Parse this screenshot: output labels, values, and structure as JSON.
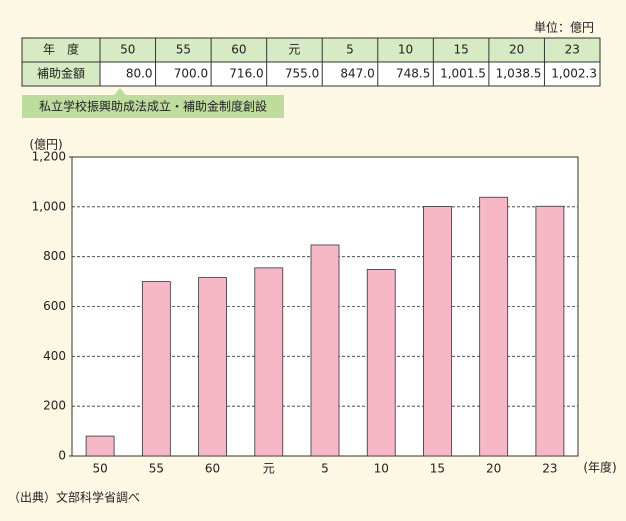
{
  "chart_data": {
    "type": "bar",
    "unit_note": "単位：億円",
    "table_header": "年　度",
    "table_row_label": "補助金額",
    "annotation": "私立学校振興助成法成立・補助金制度創設",
    "ylabel": "(億円)",
    "xlabel": "(年度)",
    "source": "（出典）文部科学省調べ",
    "categories": [
      "50",
      "55",
      "60",
      "元",
      "5",
      "10",
      "15",
      "20",
      "23"
    ],
    "values": [
      80.0,
      700.0,
      716.0,
      755.0,
      847.0,
      748.5,
      1001.5,
      1038.5,
      1002.3
    ],
    "value_labels": [
      "80.0",
      "700.0",
      "716.0",
      "755.0",
      "847.0",
      "748.5",
      "1,001.5",
      "1,038.5",
      "1,002.3"
    ],
    "color": "#f6b7c7",
    "ylim": [
      0,
      1200
    ],
    "yticks": [
      0,
      200,
      400,
      600,
      800,
      {
        "value": 1000,
        "label": "1,000"
      },
      {
        "value": 1200,
        "label": "1,200"
      }
    ],
    "grid": true
  }
}
